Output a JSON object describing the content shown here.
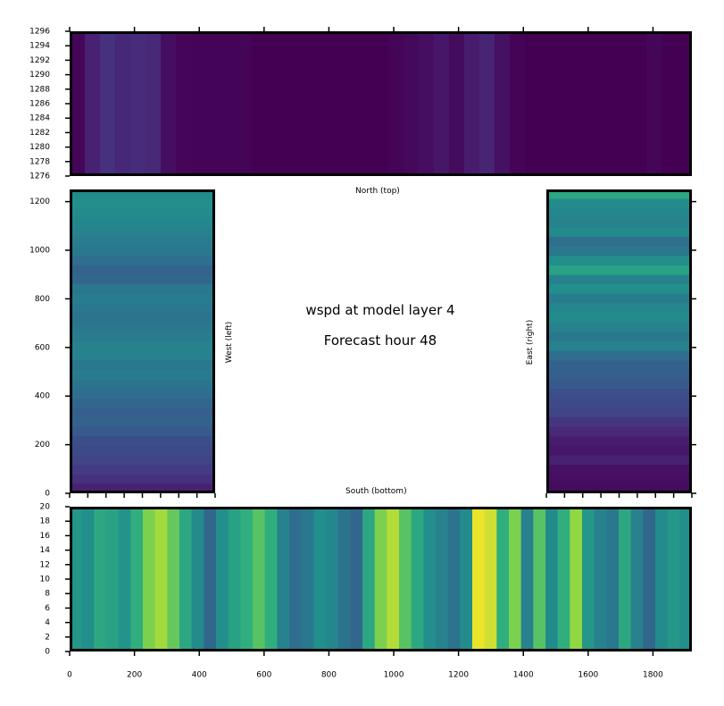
{
  "chart_data": {
    "type": "heatmap",
    "variable": "wspd",
    "title_line1": "wspd at model layer 4",
    "title_line2": "Forecast hour 48",
    "colormap": "viridis",
    "panels": [
      {
        "name": "north",
        "label": "North (top)",
        "xlim": [
          0,
          1920
        ],
        "ylim": [
          1276,
          1296
        ],
        "yticks": [
          "1276",
          "1278",
          "1280",
          "1282",
          "1284",
          "1286",
          "1288",
          "1290",
          "1292",
          "1294",
          "1296"
        ],
        "profile": [
          0.02,
          0.12,
          0.18,
          0.14,
          0.16,
          0.15,
          0.05,
          0.02,
          0.01,
          0.01,
          0.01,
          0.01,
          0.0,
          0.0,
          0.0,
          0.0,
          0.0,
          0.0,
          0.0,
          0.0,
          0.0,
          0.01,
          0.03,
          0.05,
          0.08,
          0.04,
          0.1,
          0.13,
          0.06,
          0.01,
          0.0,
          0.0,
          0.0,
          0.0,
          0.0,
          0.0,
          0.0,
          0.0,
          0.02,
          0.0,
          0.0
        ]
      },
      {
        "name": "south",
        "label": "South (bottom)",
        "xlim": [
          0,
          1920
        ],
        "ylim": [
          0,
          20
        ],
        "yticks": [
          "0",
          "2",
          "4",
          "6",
          "8",
          "10",
          "12",
          "14",
          "16",
          "18",
          "20"
        ],
        "xticks": [
          "0",
          "200",
          "400",
          "600",
          "800",
          "1000",
          "1200",
          "1400",
          "1600",
          "1800"
        ],
        "profile": [
          0.65,
          0.62,
          0.7,
          0.68,
          0.64,
          0.72,
          0.85,
          0.9,
          0.82,
          0.7,
          0.6,
          0.42,
          0.62,
          0.68,
          0.72,
          0.8,
          0.72,
          0.55,
          0.45,
          0.5,
          0.62,
          0.58,
          0.48,
          0.42,
          0.7,
          0.85,
          0.92,
          0.8,
          0.7,
          0.62,
          0.55,
          0.48,
          0.6,
          0.98,
          0.95,
          0.72,
          0.85,
          0.55,
          0.8,
          0.6,
          0.72,
          0.88,
          0.65,
          0.55,
          0.5,
          0.7,
          0.55,
          0.42,
          0.6,
          0.65,
          0.62
        ]
      },
      {
        "name": "west",
        "label": "West (left)",
        "ylim": [
          0,
          1250
        ],
        "yticks": [
          "0",
          "200",
          "400",
          "600",
          "800",
          "1000",
          "1200"
        ],
        "profile": [
          0.6,
          0.62,
          0.6,
          0.58,
          0.55,
          0.52,
          0.5,
          0.45,
          0.4,
          0.42,
          0.5,
          0.52,
          0.5,
          0.48,
          0.5,
          0.52,
          0.55,
          0.55,
          0.5,
          0.52,
          0.48,
          0.45,
          0.42,
          0.38,
          0.4,
          0.35,
          0.3,
          0.28,
          0.25,
          0.22,
          0.18,
          0.12
        ]
      },
      {
        "name": "east",
        "label": "East (right)",
        "ylim": [
          0,
          1250
        ],
        "profile": [
          0.7,
          0.6,
          0.58,
          0.55,
          0.6,
          0.45,
          0.5,
          0.62,
          0.68,
          0.55,
          0.62,
          0.52,
          0.58,
          0.6,
          0.55,
          0.5,
          0.55,
          0.45,
          0.4,
          0.38,
          0.35,
          0.3,
          0.28,
          0.25,
          0.2,
          0.15,
          0.1,
          0.08,
          0.12,
          0.06,
          0.05,
          0.04
        ]
      }
    ]
  }
}
